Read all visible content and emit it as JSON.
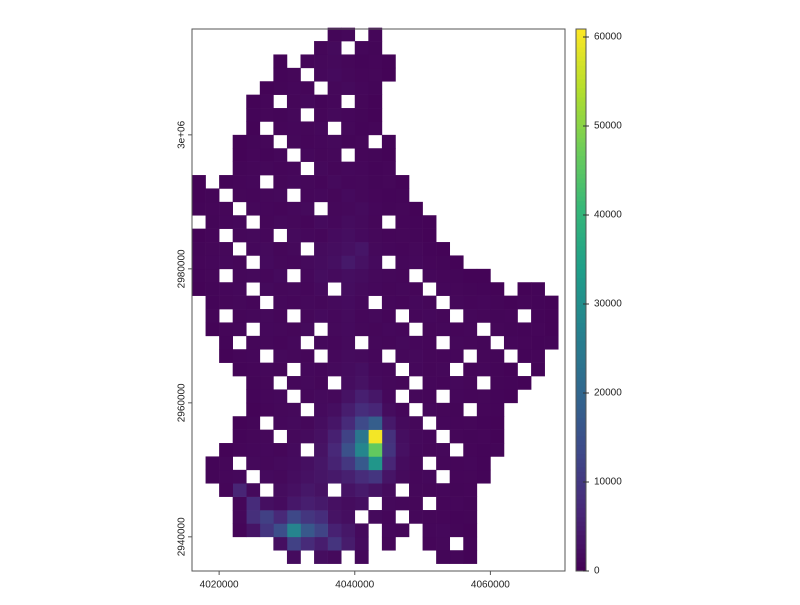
{
  "chart_data": {
    "type": "raster",
    "x": [
      4017000,
      4019000,
      4021000,
      4023000,
      4025000,
      4027000,
      4029000,
      4031000,
      4033000,
      4035000,
      4037000,
      4039000,
      4041000,
      4043000,
      4045000,
      4047000,
      4049000,
      4051000,
      4053000,
      4055000,
      4057000,
      4059000,
      4061000,
      4063000,
      4065000,
      4067000,
      4069000
    ],
    "y": [
      3015000,
      3013000,
      3011000,
      3009000,
      3007000,
      3005000,
      3003000,
      3001000,
      2999000,
      2997000,
      2995000,
      2993000,
      2991000,
      2989000,
      2987000,
      2985000,
      2983000,
      2981000,
      2979000,
      2977000,
      2975000,
      2973000,
      2971000,
      2969000,
      2967000,
      2965000,
      2963000,
      2961000,
      2959000,
      2957000,
      2955000,
      2953000,
      2951000,
      2949000,
      2947000,
      2945000,
      2943000,
      2941000,
      2939000,
      2937000
    ],
    "values": [
      [
        null,
        null,
        null,
        null,
        null,
        null,
        null,
        null,
        null,
        null,
        800,
        1200,
        null,
        900,
        null,
        null,
        null,
        null,
        null,
        null,
        null,
        null,
        null,
        null,
        null,
        null,
        null
      ],
      [
        null,
        null,
        null,
        null,
        null,
        null,
        null,
        null,
        null,
        1000,
        1500,
        null,
        1100,
        800,
        null,
        null,
        null,
        null,
        null,
        null,
        null,
        null,
        null,
        null,
        null,
        null,
        null
      ],
      [
        null,
        null,
        null,
        null,
        null,
        null,
        600,
        null,
        900,
        1200,
        1400,
        1000,
        700,
        900,
        500,
        null,
        null,
        null,
        null,
        null,
        null,
        null,
        null,
        null,
        null,
        null,
        null
      ],
      [
        null,
        null,
        null,
        null,
        null,
        null,
        700,
        1000,
        null,
        1300,
        1600,
        1200,
        900,
        1000,
        600,
        null,
        null,
        null,
        null,
        null,
        null,
        null,
        null,
        null,
        null,
        null,
        null
      ],
      [
        null,
        null,
        null,
        null,
        null,
        500,
        800,
        1100,
        900,
        null,
        1200,
        1500,
        1100,
        800,
        null,
        null,
        null,
        null,
        null,
        null,
        null,
        null,
        null,
        null,
        null,
        null,
        null
      ],
      [
        null,
        null,
        null,
        null,
        600,
        900,
        null,
        1000,
        1300,
        700,
        1100,
        null,
        1000,
        600,
        null,
        null,
        null,
        null,
        null,
        null,
        null,
        null,
        null,
        null,
        null,
        null,
        null
      ],
      [
        null,
        null,
        null,
        null,
        700,
        1000,
        800,
        1200,
        null,
        900,
        1400,
        1100,
        800,
        500,
        null,
        null,
        null,
        null,
        null,
        null,
        null,
        null,
        null,
        null,
        null,
        null,
        null
      ],
      [
        null,
        null,
        null,
        null,
        500,
        null,
        900,
        1100,
        1000,
        1300,
        null,
        1200,
        700,
        900,
        null,
        null,
        null,
        null,
        null,
        null,
        null,
        null,
        null,
        null,
        null,
        null,
        null
      ],
      [
        null,
        null,
        null,
        600,
        800,
        1000,
        null,
        1200,
        900,
        1100,
        1400,
        800,
        1000,
        null,
        700,
        null,
        null,
        null,
        null,
        null,
        null,
        null,
        null,
        null,
        null,
        null,
        null
      ],
      [
        null,
        null,
        null,
        500,
        900,
        700,
        1100,
        null,
        1300,
        1000,
        1200,
        null,
        900,
        800,
        600,
        null,
        null,
        null,
        null,
        null,
        null,
        null,
        null,
        null,
        null,
        null,
        null
      ],
      [
        null,
        null,
        null,
        800,
        1000,
        1200,
        900,
        1100,
        null,
        1400,
        1000,
        1300,
        1100,
        700,
        900,
        null,
        null,
        null,
        null,
        null,
        null,
        null,
        null,
        null,
        null,
        null,
        null
      ],
      [
        500,
        null,
        700,
        900,
        1100,
        null,
        1000,
        1300,
        1200,
        900,
        1500,
        1100,
        1200,
        800,
        1000,
        600,
        null,
        null,
        null,
        null,
        null,
        null,
        null,
        null,
        null,
        null,
        null
      ],
      [
        600,
        800,
        null,
        1000,
        900,
        1200,
        1400,
        null,
        1100,
        1300,
        1000,
        1600,
        1200,
        900,
        700,
        800,
        null,
        null,
        null,
        null,
        null,
        null,
        null,
        null,
        null,
        null,
        null
      ],
      [
        700,
        900,
        1000,
        null,
        1200,
        1100,
        900,
        1300,
        1500,
        null,
        1200,
        1400,
        1700,
        1100,
        800,
        1000,
        600,
        null,
        null,
        null,
        null,
        null,
        null,
        null,
        null,
        null,
        null
      ],
      [
        null,
        800,
        1100,
        1300,
        null,
        1000,
        1400,
        1200,
        900,
        1600,
        1300,
        1900,
        1500,
        1000,
        null,
        900,
        700,
        500,
        null,
        null,
        null,
        null,
        null,
        null,
        null,
        null,
        null
      ],
      [
        600,
        900,
        null,
        1200,
        1400,
        1100,
        null,
        1500,
        1300,
        1100,
        1800,
        2200,
        1600,
        1200,
        900,
        1000,
        800,
        600,
        null,
        null,
        null,
        null,
        null,
        null,
        null,
        null,
        null
      ],
      [
        800,
        1000,
        1200,
        null,
        1300,
        1500,
        1000,
        1400,
        null,
        1700,
        2000,
        2600,
        3500,
        1400,
        1100,
        900,
        1200,
        700,
        500,
        null,
        null,
        null,
        null,
        null,
        null,
        null,
        null
      ],
      [
        900,
        1100,
        1300,
        1000,
        null,
        1600,
        1200,
        1100,
        1500,
        1900,
        2400,
        4200,
        2800,
        1600,
        null,
        1100,
        1300,
        900,
        800,
        600,
        null,
        null,
        null,
        null,
        null,
        null,
        null
      ],
      [
        700,
        1000,
        null,
        1200,
        1400,
        1100,
        1600,
        null,
        1300,
        2100,
        1700,
        2300,
        1900,
        1400,
        1200,
        1000,
        null,
        1100,
        900,
        800,
        600,
        500,
        null,
        null,
        null,
        null,
        null
      ],
      [
        600,
        800,
        1100,
        1300,
        null,
        1500,
        1200,
        1400,
        1100,
        1600,
        null,
        2000,
        1500,
        1300,
        1000,
        1200,
        900,
        null,
        1100,
        1000,
        800,
        700,
        600,
        null,
        500,
        700,
        null
      ],
      [
        null,
        700,
        1000,
        1200,
        900,
        null,
        1300,
        1100,
        1400,
        1200,
        1500,
        1800,
        1300,
        null,
        1100,
        900,
        1300,
        1000,
        null,
        1200,
        900,
        1100,
        800,
        600,
        900,
        700,
        500
      ],
      [
        null,
        800,
        null,
        1000,
        1200,
        1400,
        1000,
        null,
        1200,
        1600,
        1300,
        1700,
        1100,
        1400,
        900,
        null,
        1100,
        1300,
        1000,
        null,
        1200,
        1000,
        800,
        900,
        null,
        700,
        600
      ],
      [
        null,
        600,
        900,
        1100,
        null,
        1300,
        1200,
        1000,
        1500,
        null,
        1400,
        1600,
        1200,
        1000,
        1300,
        1100,
        null,
        1000,
        1200,
        900,
        1100,
        null,
        1000,
        800,
        700,
        900,
        600
      ],
      [
        null,
        null,
        700,
        null,
        1000,
        1200,
        900,
        1300,
        null,
        1400,
        1100,
        1500,
        null,
        1200,
        1000,
        1400,
        1100,
        900,
        null,
        1200,
        1000,
        800,
        null,
        1100,
        900,
        700,
        800
      ],
      [
        null,
        null,
        600,
        900,
        1100,
        null,
        1400,
        1200,
        1000,
        null,
        1300,
        1700,
        1500,
        1100,
        null,
        1200,
        1400,
        1000,
        900,
        1100,
        null,
        1000,
        800,
        null,
        700,
        900,
        null
      ],
      [
        null,
        null,
        null,
        700,
        900,
        1200,
        1000,
        null,
        1300,
        1100,
        1500,
        1900,
        2400,
        1300,
        1100,
        null,
        1300,
        1000,
        1200,
        null,
        900,
        1100,
        800,
        600,
        null,
        700,
        null
      ],
      [
        null,
        null,
        null,
        null,
        800,
        1000,
        null,
        1200,
        1400,
        1000,
        null,
        2100,
        2900,
        1600,
        1200,
        1000,
        null,
        1100,
        900,
        1300,
        1000,
        null,
        800,
        700,
        600,
        null,
        null
      ],
      [
        null,
        null,
        null,
        null,
        700,
        1100,
        1300,
        null,
        1200,
        1500,
        1400,
        3000,
        5200,
        3800,
        1300,
        null,
        1200,
        1000,
        null,
        1100,
        900,
        1000,
        700,
        500,
        null,
        null,
        null
      ],
      [
        null,
        null,
        null,
        null,
        600,
        900,
        1200,
        1400,
        null,
        1600,
        2200,
        4800,
        7800,
        6500,
        1900,
        1100,
        null,
        1300,
        1000,
        800,
        null,
        900,
        700,
        null,
        null,
        null,
        null
      ],
      [
        null,
        null,
        null,
        500,
        800,
        null,
        1300,
        1500,
        1200,
        2000,
        3500,
        7200,
        13500,
        18000,
        4200,
        1500,
        1200,
        null,
        1100,
        900,
        1000,
        700,
        600,
        null,
        null,
        null,
        null
      ],
      [
        null,
        null,
        null,
        700,
        1000,
        1200,
        null,
        1400,
        1700,
        2600,
        5400,
        12000,
        24000,
        60000,
        8500,
        2200,
        1400,
        1100,
        null,
        1000,
        800,
        900,
        600,
        null,
        null,
        null,
        null
      ],
      [
        null,
        null,
        600,
        900,
        1100,
        1300,
        1000,
        1600,
        null,
        3100,
        6800,
        15000,
        28000,
        46000,
        9200,
        2600,
        1300,
        1000,
        1200,
        null,
        900,
        700,
        800,
        null,
        null,
        null,
        null
      ],
      [
        null,
        700,
        1000,
        null,
        1400,
        1200,
        1500,
        1800,
        2400,
        3600,
        5900,
        9800,
        17000,
        32000,
        6400,
        1900,
        1200,
        null,
        1000,
        900,
        1100,
        700,
        null,
        null,
        null,
        null,
        null
      ],
      [
        null,
        800,
        1100,
        1300,
        null,
        1600,
        1400,
        2000,
        2800,
        3400,
        4100,
        5300,
        7600,
        9400,
        3300,
        1500,
        1100,
        1300,
        null,
        900,
        1000,
        700,
        null,
        null,
        null,
        null,
        null
      ],
      [
        null,
        null,
        900,
        6200,
        1500,
        null,
        1900,
        2600,
        3800,
        2900,
        null,
        3200,
        4400,
        3100,
        1700,
        null,
        1200,
        1000,
        1100,
        800,
        900,
        null,
        null,
        null,
        null,
        null,
        null
      ],
      [
        null,
        null,
        null,
        1000,
        7400,
        2400,
        1800,
        3900,
        5100,
        4200,
        2600,
        1900,
        2500,
        null,
        1400,
        1200,
        1000,
        null,
        900,
        1100,
        800,
        null,
        null,
        null,
        null,
        null,
        null
      ],
      [
        null,
        null,
        null,
        1200,
        8100,
        11500,
        6900,
        13200,
        9600,
        7800,
        3100,
        2200,
        null,
        1500,
        1100,
        null,
        1200,
        1000,
        900,
        700,
        800,
        null,
        null,
        null,
        null,
        null,
        null
      ],
      [
        null,
        null,
        null,
        900,
        3300,
        9400,
        14500,
        27500,
        16800,
        12400,
        5600,
        3800,
        1600,
        null,
        1300,
        1000,
        null,
        1100,
        1300,
        800,
        600,
        null,
        null,
        null,
        null,
        null,
        null
      ],
      [
        null,
        null,
        null,
        null,
        null,
        null,
        2500,
        11800,
        7300,
        4800,
        9100,
        4600,
        1800,
        null,
        1000,
        null,
        null,
        900,
        1200,
        null,
        700,
        null,
        null,
        null,
        null,
        null,
        null
      ],
      [
        null,
        null,
        null,
        null,
        null,
        null,
        null,
        1800,
        null,
        2100,
        1500,
        null,
        1300,
        null,
        null,
        null,
        null,
        null,
        800,
        1000,
        600,
        null,
        null,
        null,
        null,
        null,
        null
      ]
    ],
    "xlim": [
      4016000,
      4071000
    ],
    "ylim": [
      2934900,
      3015800
    ],
    "xticks": [
      4020000,
      4040000,
      4060000
    ],
    "yticks": [
      2940000,
      2960000,
      2980000,
      {
        "value": 3000000,
        "label": "3e+06"
      }
    ],
    "clim": [
      0,
      60900
    ],
    "cticks": [
      0,
      10000,
      20000,
      30000,
      40000,
      50000,
      60000
    ],
    "colormap": "viridis"
  }
}
